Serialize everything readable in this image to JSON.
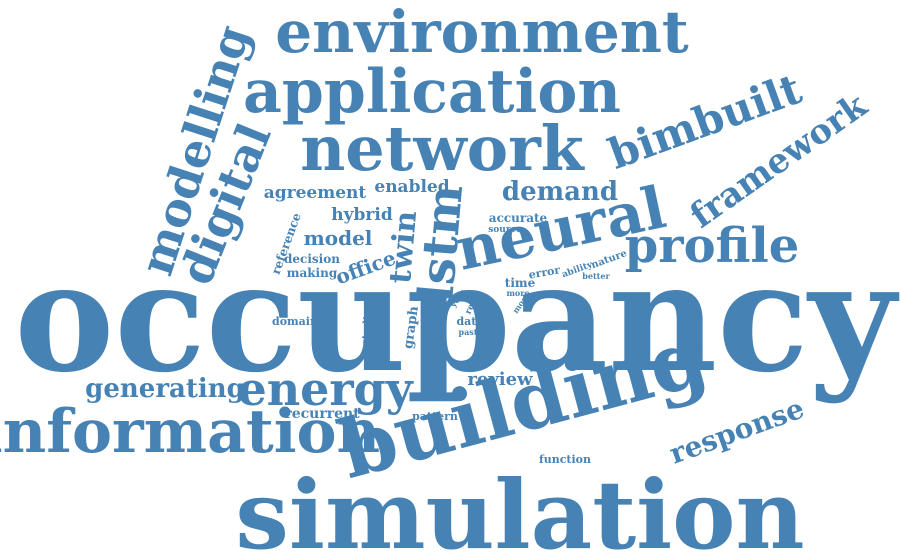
{
  "cloud": {
    "color": "#4682b4",
    "words": [
      {
        "key": "occupancy",
        "text": "occupancy"
      },
      {
        "key": "simulation",
        "text": "simulation"
      },
      {
        "key": "building",
        "text": "building"
      },
      {
        "key": "information",
        "text": "information"
      },
      {
        "key": "environment",
        "text": "environment"
      },
      {
        "key": "application",
        "text": "application"
      },
      {
        "key": "network",
        "text": "network"
      },
      {
        "key": "neural",
        "text": "neural"
      },
      {
        "key": "profile",
        "text": "profile"
      },
      {
        "key": "energy",
        "text": "energy"
      },
      {
        "key": "modelling",
        "text": "modelling"
      },
      {
        "key": "digital",
        "text": "digital"
      },
      {
        "key": "bimbuilt",
        "text": "bimbuilt"
      },
      {
        "key": "framework",
        "text": "framework"
      },
      {
        "key": "response",
        "text": "response"
      },
      {
        "key": "lstm",
        "text": "lstm"
      },
      {
        "key": "twin",
        "text": "twin"
      },
      {
        "key": "demand",
        "text": "demand"
      },
      {
        "key": "generating",
        "text": "generating"
      },
      {
        "key": "review",
        "text": "review"
      },
      {
        "key": "agreement",
        "text": "agreement"
      },
      {
        "key": "enabled",
        "text": "enabled"
      },
      {
        "key": "hybrid",
        "text": "hybrid"
      },
      {
        "key": "model",
        "text": "model"
      },
      {
        "key": "office",
        "text": "office"
      },
      {
        "key": "recurrent",
        "text": "recurrent"
      },
      {
        "key": "reference",
        "text": "reference"
      },
      {
        "key": "decision",
        "text": "decision"
      },
      {
        "key": "making",
        "text": "making"
      },
      {
        "key": "accurate",
        "text": "accurate"
      },
      {
        "key": "source",
        "text": "source"
      },
      {
        "key": "graph",
        "text": "graph"
      },
      {
        "key": "studies",
        "text": "studies"
      },
      {
        "key": "domain",
        "text": "domain"
      },
      {
        "key": "time",
        "text": "time"
      },
      {
        "key": "more",
        "text": "more"
      },
      {
        "key": "error",
        "text": "error"
      },
      {
        "key": "ability",
        "text": "ability"
      },
      {
        "key": "nature",
        "text": "nature"
      },
      {
        "key": "better",
        "text": "better"
      },
      {
        "key": "year",
        "text": "year"
      },
      {
        "key": "real",
        "text": "real"
      },
      {
        "key": "most",
        "text": "most"
      },
      {
        "key": "data",
        "text": "data"
      },
      {
        "key": "past",
        "text": "past"
      },
      {
        "key": "pattern",
        "text": "pattern"
      },
      {
        "key": "function",
        "text": "function"
      }
    ]
  }
}
